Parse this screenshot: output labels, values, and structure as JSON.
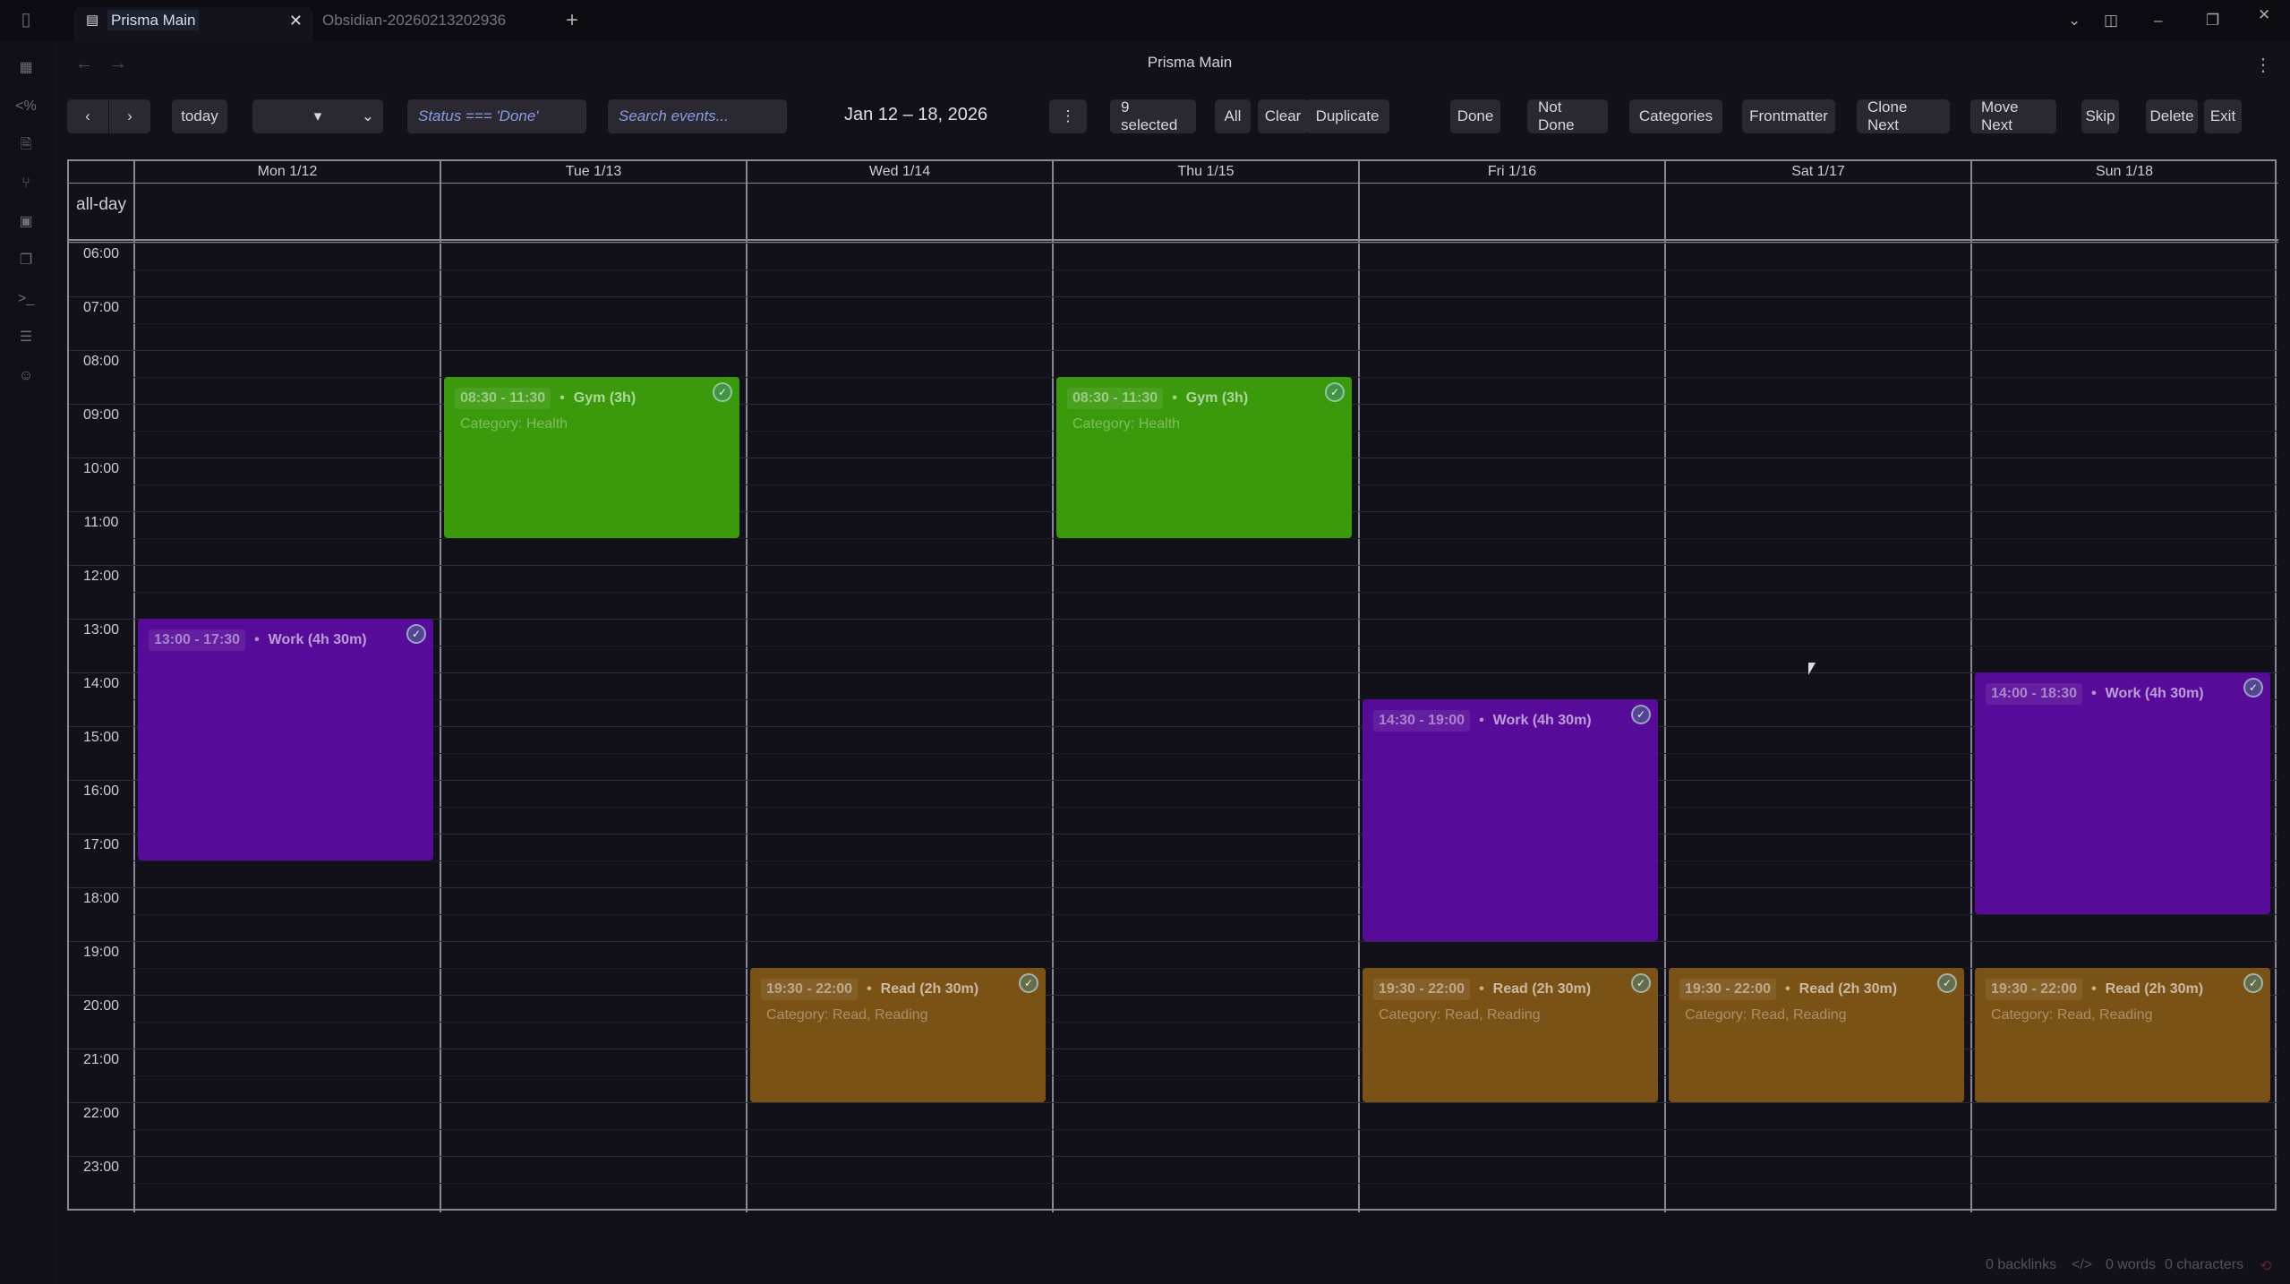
{
  "tabs": [
    {
      "label": "Prisma Main",
      "icon": "calendar-icon",
      "active": true
    },
    {
      "label": "Obsidian-20260213202936",
      "active": false
    }
  ],
  "window_title": "Prisma Main",
  "ribbon_icons": [
    "calendar-icon",
    "templater-icon",
    "file-search-icon",
    "graph-icon",
    "grid-icon",
    "copy-icon",
    "terminal-icon",
    "list-icon",
    "smiley-icon"
  ],
  "toolbar": {
    "prev": "‹",
    "next": "›",
    "today": "today",
    "view_select": "▾",
    "filter_value": "Status === 'Done'",
    "search_placeholder": "Search events...",
    "date_range": "Jan 12 – 18, 2026",
    "more": "⋮",
    "actions": [
      "9 selected",
      "All",
      "Clear",
      "Duplicate",
      "Done",
      "Not Done",
      "Categories",
      "Frontmatter",
      "Clone Next",
      "Move Next",
      "Skip",
      "Delete",
      "Exit"
    ]
  },
  "calendar": {
    "days": [
      "Mon 1/12",
      "Tue 1/13",
      "Wed 1/14",
      "Thu 1/15",
      "Fri 1/16",
      "Sat 1/17",
      "Sun 1/18"
    ],
    "allday_label": "all-day",
    "hours": [
      "06:00",
      "07:00",
      "08:00",
      "09:00",
      "10:00",
      "11:00",
      "12:00",
      "13:00",
      "14:00",
      "15:00",
      "16:00",
      "17:00",
      "18:00",
      "19:00",
      "20:00",
      "21:00",
      "22:00",
      "23:00"
    ],
    "start_hour": 6,
    "colors": {
      "Health": "#3a9a0c",
      "Work": "#560c98",
      "Read": "#7b5216"
    },
    "events": [
      {
        "day": 1,
        "start": 8.5,
        "end": 11.5,
        "time": "08:30 - 11:30",
        "title": "Gym (3h)",
        "category": "Category: Health",
        "type": "Health",
        "done": true
      },
      {
        "day": 3,
        "start": 8.5,
        "end": 11.5,
        "time": "08:30 - 11:30",
        "title": "Gym (3h)",
        "category": "Category: Health",
        "type": "Health",
        "done": true
      },
      {
        "day": 0,
        "start": 13,
        "end": 17.5,
        "time": "13:00 - 17:30",
        "title": "Work (4h 30m)",
        "category": "",
        "type": "Work",
        "done": true
      },
      {
        "day": 4,
        "start": 14.5,
        "end": 19,
        "time": "14:30 - 19:00",
        "title": "Work (4h 30m)",
        "category": "",
        "type": "Work",
        "done": true
      },
      {
        "day": 6,
        "start": 14,
        "end": 18.5,
        "time": "14:00 - 18:30",
        "title": "Work (4h 30m)",
        "category": "",
        "type": "Work",
        "done": true
      },
      {
        "day": 2,
        "start": 19.5,
        "end": 22,
        "time": "19:30 - 22:00",
        "title": "Read (2h 30m)",
        "category": "Category: Read, Reading",
        "type": "Read",
        "done": true
      },
      {
        "day": 4,
        "start": 19.5,
        "end": 22,
        "time": "19:30 - 22:00",
        "title": "Read (2h 30m)",
        "category": "Category: Read, Reading",
        "type": "Read",
        "done": true
      },
      {
        "day": 5,
        "start": 19.5,
        "end": 22,
        "time": "19:30 - 22:00",
        "title": "Read (2h 30m)",
        "category": "Category: Read, Reading",
        "type": "Read",
        "done": true
      },
      {
        "day": 6,
        "start": 19.5,
        "end": 22,
        "time": "19:30 - 22:00",
        "title": "Read (2h 30m)",
        "category": "Category: Read, Reading",
        "type": "Read",
        "done": true
      }
    ]
  },
  "statusbar": {
    "backlinks": "0 backlinks",
    "code": "</>",
    "words": "0 words",
    "characters": "0 characters"
  }
}
